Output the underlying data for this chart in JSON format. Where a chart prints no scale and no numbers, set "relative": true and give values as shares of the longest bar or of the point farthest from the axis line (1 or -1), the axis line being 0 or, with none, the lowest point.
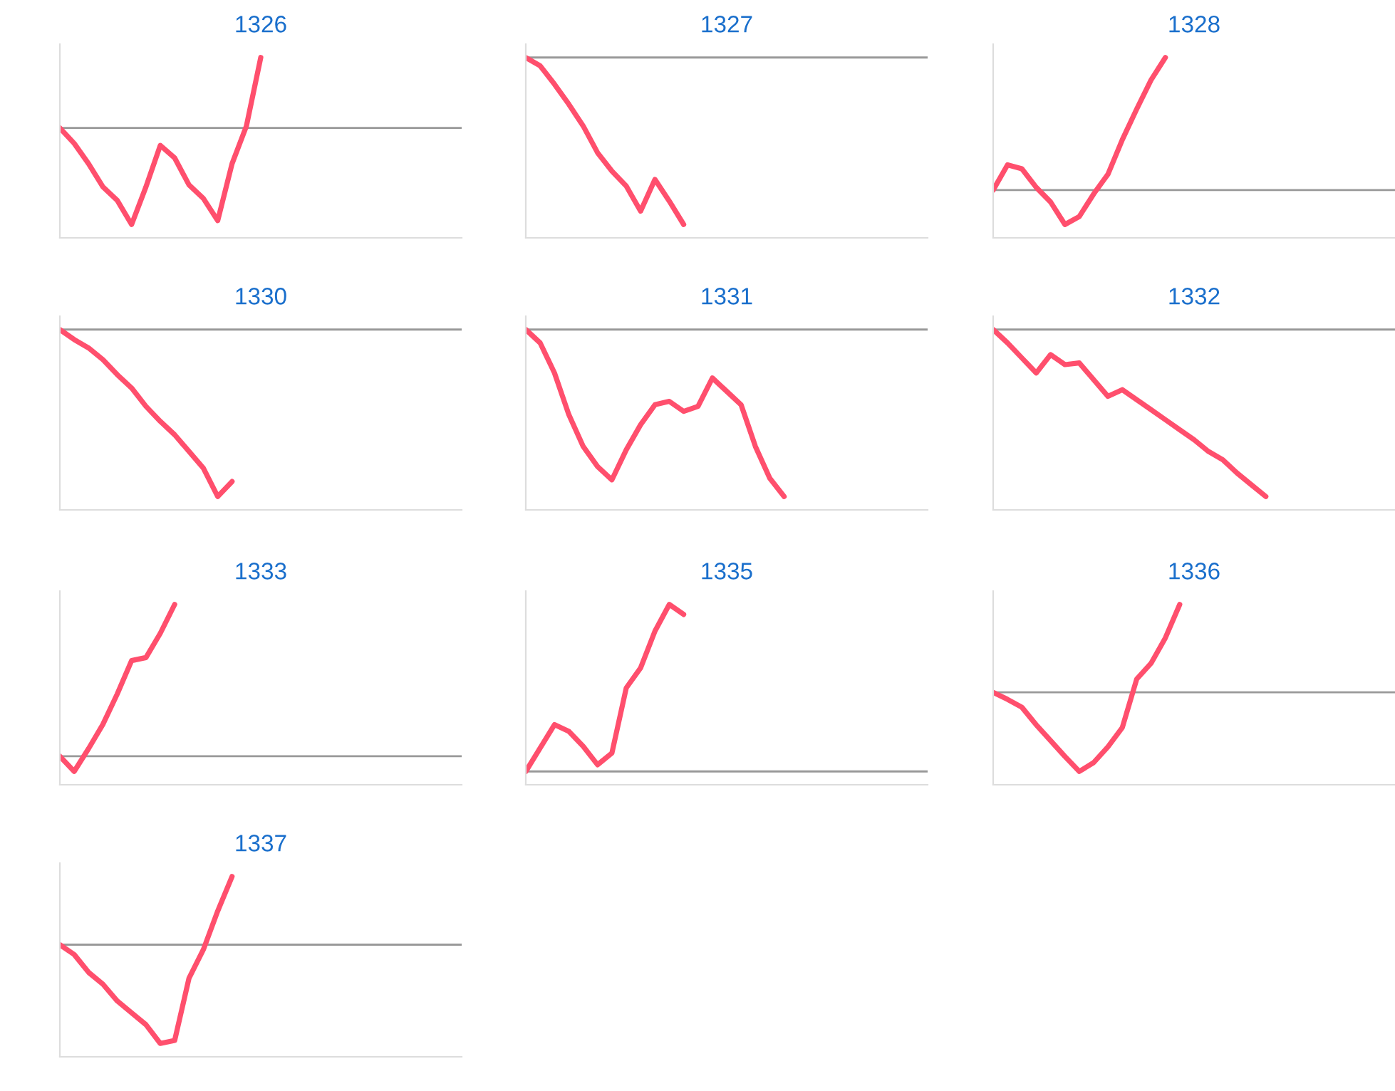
{
  "chart_data": [
    {
      "type": "line",
      "title": "1326",
      "relative": true,
      "color": "#ff4f6d",
      "categories": [
        null,
        null,
        null,
        null,
        null,
        null,
        null,
        null,
        null,
        null,
        null,
        null,
        null,
        null,
        null,
        null,
        null,
        null,
        null,
        null,
        null,
        null,
        null,
        null,
        null,
        null,
        null,
        null,
        null
      ],
      "values": [
        0,
        -0.16,
        -0.37,
        -0.61,
        -0.75,
        -1,
        -0.61,
        -0.18,
        -0.31,
        -0.59,
        -0.73,
        -0.96,
        -0.37,
        0.02,
        0.73,
        null,
        null,
        null,
        null,
        null,
        null,
        null,
        null,
        null,
        null,
        null,
        null,
        null,
        null
      ]
    },
    {
      "type": "line",
      "title": "1327",
      "relative": true,
      "color": "#ff4f6d",
      "categories": [
        null,
        null,
        null,
        null,
        null,
        null,
        null,
        null,
        null,
        null,
        null,
        null,
        null,
        null,
        null,
        null,
        null,
        null,
        null,
        null,
        null,
        null,
        null,
        null,
        null,
        null,
        null,
        null,
        null
      ],
      "values": [
        0,
        -0.05,
        -0.16,
        -0.28,
        -0.41,
        -0.57,
        -0.68,
        -0.77,
        -0.92,
        -0.73,
        -0.86,
        -1,
        null,
        null,
        null,
        null,
        null,
        null,
        null,
        null,
        null,
        null,
        null,
        null,
        null,
        null,
        null,
        null,
        null
      ]
    },
    {
      "type": "line",
      "title": "1328",
      "relative": true,
      "color": "#ff4f6d",
      "categories": [
        null,
        null,
        null,
        null,
        null,
        null,
        null,
        null,
        null,
        null,
        null,
        null,
        null,
        null,
        null,
        null,
        null,
        null,
        null,
        null,
        null,
        null,
        null,
        null,
        null,
        null,
        null,
        null,
        null
      ],
      "values": [
        0,
        0.19,
        0.16,
        0.02,
        -0.09,
        -0.26,
        -0.2,
        -0.03,
        0.12,
        0.38,
        0.61,
        0.83,
        1,
        null,
        null,
        null,
        null,
        null,
        null,
        null,
        null,
        null,
        null,
        null,
        null,
        null,
        null,
        null,
        null
      ]
    },
    {
      "type": "line",
      "title": "1330",
      "relative": true,
      "color": "#ff4f6d",
      "categories": [
        null,
        null,
        null,
        null,
        null,
        null,
        null,
        null,
        null,
        null,
        null,
        null,
        null,
        null,
        null,
        null,
        null,
        null,
        null,
        null,
        null,
        null,
        null,
        null,
        null,
        null,
        null,
        null,
        null
      ],
      "values": [
        0,
        -0.06,
        -0.11,
        -0.18,
        -0.27,
        -0.35,
        -0.46,
        -0.55,
        -0.63,
        -0.73,
        -0.83,
        -1,
        -0.91,
        null,
        null,
        null,
        null,
        null,
        null,
        null,
        null,
        null,
        null,
        null,
        null,
        null,
        null,
        null,
        null
      ]
    },
    {
      "type": "line",
      "title": "1331",
      "relative": true,
      "color": "#ff4f6d",
      "categories": [
        null,
        null,
        null,
        null,
        null,
        null,
        null,
        null,
        null,
        null,
        null,
        null,
        null,
        null,
        null,
        null,
        null,
        null,
        null,
        null,
        null,
        null,
        null,
        null,
        null,
        null,
        null,
        null,
        null
      ],
      "values": [
        0,
        -0.08,
        -0.26,
        -0.51,
        -0.7,
        -0.82,
        -0.9,
        -0.72,
        -0.57,
        -0.45,
        -0.43,
        -0.49,
        -0.46,
        -0.29,
        -0.37,
        -0.45,
        -0.7,
        -0.89,
        -1,
        null,
        null,
        null,
        null,
        null,
        null,
        null,
        null,
        null,
        null
      ]
    },
    {
      "type": "line",
      "title": "1332",
      "relative": true,
      "color": "#ff4f6d",
      "categories": [
        null,
        null,
        null,
        null,
        null,
        null,
        null,
        null,
        null,
        null,
        null,
        null,
        null,
        null,
        null,
        null,
        null,
        null,
        null,
        null,
        null,
        null,
        null,
        null,
        null,
        null,
        null,
        null,
        null
      ],
      "values": [
        0,
        -0.08,
        -0.17,
        -0.26,
        -0.15,
        -0.21,
        -0.2,
        -0.3,
        -0.4,
        -0.36,
        -0.42,
        -0.48,
        -0.54,
        -0.6,
        -0.66,
        -0.73,
        -0.78,
        -0.86,
        -0.93,
        -1,
        null,
        null,
        null,
        null,
        null,
        null,
        null,
        null,
        null
      ]
    },
    {
      "type": "line",
      "title": "1333",
      "relative": true,
      "color": "#ff4f6d",
      "categories": [
        null,
        null,
        null,
        null,
        null,
        null,
        null,
        null,
        null,
        null,
        null,
        null,
        null,
        null,
        null,
        null,
        null,
        null,
        null,
        null,
        null,
        null,
        null,
        null,
        null,
        null,
        null,
        null,
        null
      ],
      "values": [
        0,
        -0.1,
        0.05,
        0.21,
        0.41,
        0.63,
        0.65,
        0.81,
        1,
        null,
        null,
        null,
        null,
        null,
        null,
        null,
        null,
        null,
        null,
        null,
        null,
        null,
        null,
        null,
        null,
        null,
        null,
        null,
        null
      ]
    },
    {
      "type": "line",
      "title": "1335",
      "relative": true,
      "color": "#ff4f6d",
      "categories": [
        null,
        null,
        null,
        null,
        null,
        null,
        null,
        null,
        null,
        null,
        null,
        null,
        null,
        null,
        null,
        null,
        null,
        null,
        null,
        null,
        null,
        null,
        null,
        null,
        null,
        null,
        null,
        null,
        null
      ],
      "values": [
        0,
        0.14,
        0.28,
        0.24,
        0.15,
        0.04,
        0.11,
        0.5,
        0.62,
        0.84,
        1,
        0.94,
        null,
        null,
        null,
        null,
        null,
        null,
        null,
        null,
        null,
        null,
        null,
        null,
        null,
        null,
        null,
        null,
        null
      ]
    },
    {
      "type": "line",
      "title": "1336",
      "relative": true,
      "color": "#ff4f6d",
      "categories": [
        null,
        null,
        null,
        null,
        null,
        null,
        null,
        null,
        null,
        null,
        null,
        null,
        null,
        null,
        null,
        null,
        null,
        null,
        null,
        null,
        null,
        null,
        null,
        null,
        null,
        null,
        null,
        null,
        null
      ],
      "values": [
        0,
        -0.08,
        -0.17,
        -0.37,
        -0.55,
        -0.73,
        -0.9,
        -0.8,
        -0.62,
        -0.4,
        0.15,
        0.33,
        0.62,
        1,
        null,
        null,
        null,
        null,
        null,
        null,
        null,
        null,
        null,
        null,
        null,
        null,
        null,
        null,
        null
      ]
    },
    {
      "type": "line",
      "title": "1337",
      "relative": true,
      "color": "#ff4f6d",
      "categories": [
        null,
        null,
        null,
        null,
        null,
        null,
        null,
        null,
        null,
        null,
        null,
        null,
        null,
        null,
        null,
        null,
        null,
        null,
        null,
        null,
        null,
        null,
        null,
        null,
        null,
        null,
        null,
        null,
        null
      ],
      "values": [
        0,
        -0.1,
        -0.28,
        -0.4,
        -0.57,
        -0.69,
        -0.81,
        -1,
        -0.97,
        -0.34,
        -0.05,
        0.34,
        0.69,
        null,
        null,
        null,
        null,
        null,
        null,
        null,
        null,
        null,
        null,
        null,
        null,
        null,
        null,
        null,
        null
      ]
    }
  ]
}
